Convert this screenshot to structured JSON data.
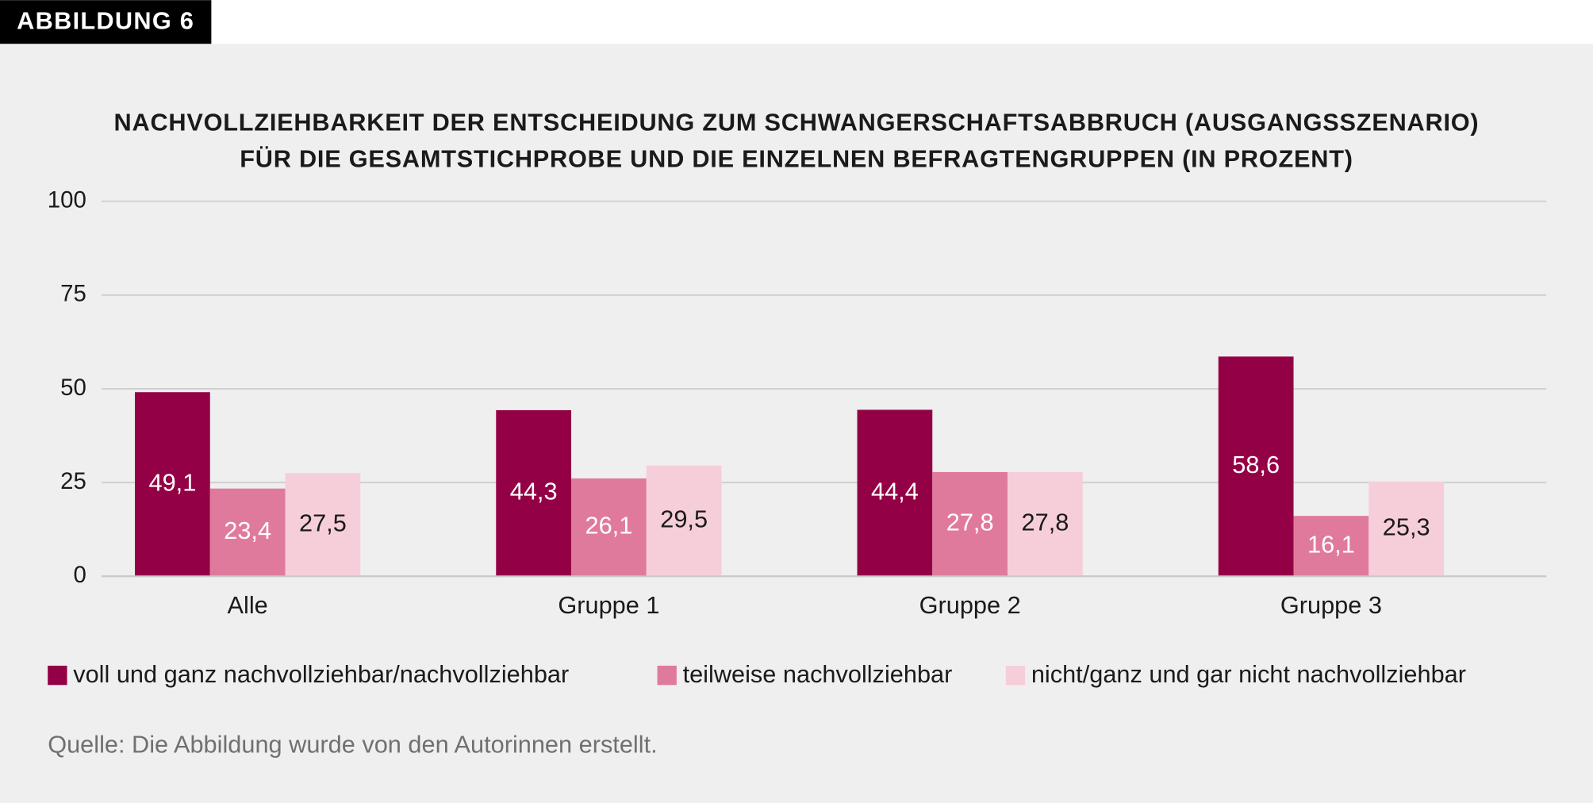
{
  "chart_data": {
    "type": "bar",
    "figure_label": "ABBILDUNG 6",
    "title": [
      "NACHVOLLZIEHBARKEIT DER ENTSCHEIDUNG ZUM SCHWANGERSCHAFTSABBRUCH (AUSGANGSSZENARIO)",
      "FÜR DIE GESAMTSTICHPROBE UND DIE EINZELNEN BEFRAGTENGRUPPEN (IN PROZENT)"
    ],
    "categories": [
      "Alle",
      "Gruppe 1",
      "Gruppe 2",
      "Gruppe 3"
    ],
    "series": [
      {
        "name": "voll und ganz nachvollziehbar/nachvollziehbar",
        "color": "#940045",
        "label_color": "#ffffff",
        "values": [
          49.1,
          44.3,
          44.4,
          58.6
        ],
        "value_labels": [
          "49,1",
          "44,3",
          "44,4",
          "58,6"
        ]
      },
      {
        "name": "teilweise nachvollziehbar",
        "color": "#e07a9c",
        "label_color": "#ffffff",
        "values": [
          23.4,
          26.1,
          27.8,
          16.1
        ],
        "value_labels": [
          "23,4",
          "26,1",
          "27,8",
          "16,1"
        ]
      },
      {
        "name": "nicht/ganz und gar nicht nachvollziehbar",
        "color": "#f6ceda",
        "label_color": "#1a1a1a",
        "values": [
          27.5,
          29.5,
          27.8,
          25.3
        ],
        "value_labels": [
          "27,5",
          "29,5",
          "27,8",
          "25,3"
        ]
      }
    ],
    "ylim": [
      0,
      100
    ],
    "yticks": [
      0,
      25,
      50,
      75,
      100
    ],
    "grid": true,
    "source": "Quelle: Die Abbildung wurde von den Autorinnen erstellt."
  }
}
